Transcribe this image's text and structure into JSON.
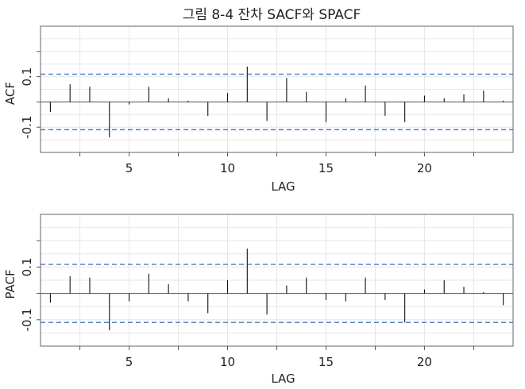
{
  "title": "그림 8-4 잔차 SACF와 SPACF",
  "colors": {
    "bound": "#4a7fc1",
    "spike": "#111111"
  },
  "chart_data": [
    {
      "type": "bar",
      "xlabel": "LAG",
      "ylabel": "ACF",
      "xlim": [
        0.5,
        24.5
      ],
      "ylim": [
        -0.2,
        0.3
      ],
      "xticks": [
        5,
        10,
        15,
        20
      ],
      "yticks": [
        -0.1,
        0.1
      ],
      "ytick_labels": [
        "-0.1",
        "0.1"
      ],
      "grid": true,
      "confidence_bound": 0.11,
      "x": [
        1,
        2,
        3,
        4,
        5,
        6,
        7,
        8,
        9,
        10,
        11,
        12,
        13,
        14,
        15,
        16,
        17,
        18,
        19,
        20,
        21,
        22,
        23,
        24
      ],
      "values": [
        -0.04,
        0.07,
        0.06,
        -0.14,
        -0.01,
        0.06,
        0.015,
        0.005,
        -0.055,
        0.035,
        0.14,
        -0.075,
        0.095,
        0.04,
        -0.08,
        0.015,
        0.065,
        -0.055,
        -0.08,
        0.025,
        0.015,
        0.03,
        0.045,
        0.005
      ]
    },
    {
      "type": "bar",
      "xlabel": "LAG",
      "ylabel": "PACF",
      "xlim": [
        0.5,
        24.5
      ],
      "ylim": [
        -0.2,
        0.3
      ],
      "xticks": [
        5,
        10,
        15,
        20
      ],
      "yticks": [
        -0.1,
        0.1
      ],
      "ytick_labels": [
        "-0.1",
        "0.1"
      ],
      "grid": true,
      "confidence_bound": 0.11,
      "x": [
        1,
        2,
        3,
        4,
        5,
        6,
        7,
        8,
        9,
        10,
        11,
        12,
        13,
        14,
        15,
        16,
        17,
        18,
        19,
        20,
        21,
        22,
        23,
        24
      ],
      "values": [
        -0.035,
        0.065,
        0.06,
        -0.14,
        -0.03,
        0.075,
        0.035,
        -0.03,
        -0.075,
        0.05,
        0.17,
        -0.08,
        0.03,
        0.06,
        -0.025,
        -0.03,
        0.06,
        -0.025,
        -0.11,
        0.015,
        0.05,
        0.025,
        0.005,
        -0.045
      ]
    }
  ]
}
